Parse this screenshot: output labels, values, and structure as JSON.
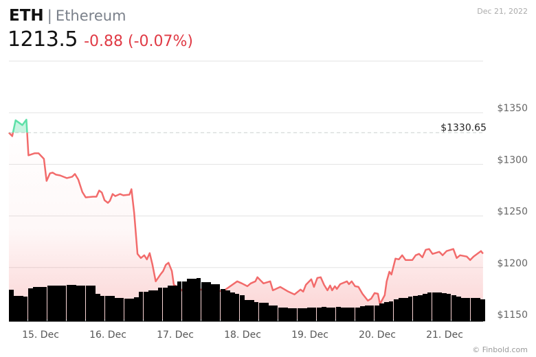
{
  "header": {
    "symbol": "ETH",
    "separator": "|",
    "name": "Ethereum",
    "price": "1213.5",
    "change": "-0.88 (-0.07%)",
    "date": "Dec 21, 2022"
  },
  "credit": "© Finbold.com",
  "colors": {
    "up": "#5ee0a8",
    "down": "#f26b6b",
    "change_text": "#e03a45",
    "volume": "#000000"
  },
  "chart_data": {
    "type": "line",
    "title": "ETH | Ethereum",
    "ylabel": "",
    "xlabel": "",
    "ylim": [
      1150,
      1400
    ],
    "yticks": [
      {
        "v": 1350,
        "label": "$1350"
      },
      {
        "v": 1300,
        "label": "$1300"
      },
      {
        "v": 1250,
        "label": "$1250"
      },
      {
        "v": 1200,
        "label": "$1200"
      },
      {
        "v": 1150,
        "label": "$1150"
      }
    ],
    "xlim": [
      14.53,
      21.57
    ],
    "xticks": [
      {
        "v": 15,
        "label": "15. Dec"
      },
      {
        "v": 16,
        "label": "16. Dec"
      },
      {
        "v": 17,
        "label": "17. Dec"
      },
      {
        "v": 18,
        "label": "18. Dec"
      },
      {
        "v": 19,
        "label": "19. Dec"
      },
      {
        "v": 20,
        "label": "20. Dec"
      },
      {
        "v": 21,
        "label": "21. Dec"
      }
    ],
    "baseline": {
      "value": 1330.65,
      "label": "$1330.65"
    },
    "grid": true,
    "price_series": [
      [
        14.53,
        1330.7
      ],
      [
        14.58,
        1327.3
      ],
      [
        14.63,
        1342.7
      ],
      [
        14.73,
        1338
      ],
      [
        14.79,
        1343.3
      ],
      [
        14.82,
        1308.7
      ],
      [
        14.91,
        1310.7
      ],
      [
        14.97,
        1310.7
      ],
      [
        15.05,
        1305.3
      ],
      [
        15.09,
        1284
      ],
      [
        15.14,
        1291.3
      ],
      [
        15.18,
        1292
      ],
      [
        15.23,
        1290
      ],
      [
        15.29,
        1289.3
      ],
      [
        15.39,
        1286.7
      ],
      [
        15.47,
        1288
      ],
      [
        15.51,
        1290.7
      ],
      [
        15.56,
        1285.3
      ],
      [
        15.62,
        1273.3
      ],
      [
        15.67,
        1268
      ],
      [
        15.78,
        1268.7
      ],
      [
        15.83,
        1268.7
      ],
      [
        15.87,
        1274.7
      ],
      [
        15.91,
        1272.7
      ],
      [
        15.95,
        1265.3
      ],
      [
        16.0,
        1262.7
      ],
      [
        16.03,
        1264.7
      ],
      [
        16.07,
        1271.3
      ],
      [
        16.11,
        1269.3
      ],
      [
        16.18,
        1271.3
      ],
      [
        16.23,
        1270
      ],
      [
        16.32,
        1270.7
      ],
      [
        16.35,
        1276
      ],
      [
        16.39,
        1253.3
      ],
      [
        16.44,
        1213.3
      ],
      [
        16.49,
        1209.3
      ],
      [
        16.54,
        1212
      ],
      [
        16.58,
        1208
      ],
      [
        16.62,
        1214
      ],
      [
        16.66,
        1203.3
      ],
      [
        16.71,
        1186.7
      ],
      [
        16.78,
        1193.3
      ],
      [
        16.82,
        1196.7
      ],
      [
        16.86,
        1202.7
      ],
      [
        16.9,
        1204.7
      ],
      [
        16.95,
        1196.7
      ],
      [
        16.98,
        1183.3
      ],
      [
        17.07,
        1180
      ],
      [
        17.15,
        1174.7
      ],
      [
        17.31,
        1179.3
      ],
      [
        17.46,
        1178
      ],
      [
        17.61,
        1176.7
      ],
      [
        17.73,
        1178
      ],
      [
        17.92,
        1186.7
      ],
      [
        17.99,
        1184.7
      ],
      [
        18.07,
        1182
      ],
      [
        18.12,
        1184.7
      ],
      [
        18.19,
        1186.7
      ],
      [
        18.22,
        1190.7
      ],
      [
        18.31,
        1184.7
      ],
      [
        18.41,
        1186.7
      ],
      [
        18.45,
        1178
      ],
      [
        18.56,
        1181.3
      ],
      [
        18.68,
        1176.7
      ],
      [
        18.77,
        1174
      ],
      [
        18.86,
        1178.7
      ],
      [
        18.9,
        1176.7
      ],
      [
        18.94,
        1183.3
      ],
      [
        19.02,
        1188.7
      ],
      [
        19.06,
        1181.3
      ],
      [
        19.11,
        1190
      ],
      [
        19.16,
        1190.7
      ],
      [
        19.21,
        1183.3
      ],
      [
        19.26,
        1178
      ],
      [
        19.3,
        1182.7
      ],
      [
        19.33,
        1178
      ],
      [
        19.37,
        1182
      ],
      [
        19.4,
        1179.3
      ],
      [
        19.45,
        1184
      ],
      [
        19.55,
        1186.7
      ],
      [
        19.58,
        1184
      ],
      [
        19.62,
        1186.7
      ],
      [
        19.67,
        1182
      ],
      [
        19.72,
        1181.3
      ],
      [
        19.78,
        1174.7
      ],
      [
        19.86,
        1168
      ],
      [
        19.91,
        1170
      ],
      [
        19.96,
        1175.3
      ],
      [
        20.01,
        1174.7
      ],
      [
        20.04,
        1164.7
      ],
      [
        20.11,
        1173.3
      ],
      [
        20.14,
        1186.7
      ],
      [
        20.18,
        1196
      ],
      [
        20.21,
        1193.3
      ],
      [
        20.27,
        1208.7
      ],
      [
        20.32,
        1208
      ],
      [
        20.37,
        1212
      ],
      [
        20.42,
        1207.3
      ],
      [
        20.52,
        1207.3
      ],
      [
        20.57,
        1212
      ],
      [
        20.62,
        1213.3
      ],
      [
        20.67,
        1210
      ],
      [
        20.72,
        1217.3
      ],
      [
        20.77,
        1218
      ],
      [
        20.82,
        1213.3
      ],
      [
        20.92,
        1215.3
      ],
      [
        20.97,
        1212
      ],
      [
        21.03,
        1216
      ],
      [
        21.13,
        1218
      ],
      [
        21.18,
        1209.3
      ],
      [
        21.23,
        1212
      ],
      [
        21.33,
        1210.7
      ],
      [
        21.38,
        1207.3
      ],
      [
        21.43,
        1210.7
      ],
      [
        21.54,
        1216
      ],
      [
        21.57,
        1213.5
      ]
    ],
    "volume_relative": [
      46,
      37,
      37,
      36,
      48,
      50,
      50,
      50,
      52,
      52,
      52,
      52,
      53,
      53,
      52,
      52,
      52,
      52,
      40,
      37,
      37,
      37,
      34,
      34,
      33,
      33,
      35,
      43,
      43,
      45,
      45,
      49,
      49,
      52,
      52,
      58,
      58,
      62,
      62,
      63,
      57,
      57,
      54,
      54,
      47,
      45,
      42,
      40,
      38,
      31,
      31,
      28,
      27,
      27,
      23,
      23,
      20,
      20,
      19,
      19,
      19,
      19,
      20,
      20,
      20,
      21,
      20,
      20,
      21,
      20,
      20,
      20,
      20,
      22,
      23,
      23,
      23,
      26,
      28,
      29,
      32,
      34,
      34,
      36,
      37,
      38,
      40,
      42,
      42,
      42,
      41,
      40,
      38,
      36,
      34,
      34,
      34,
      34,
      32
    ]
  }
}
